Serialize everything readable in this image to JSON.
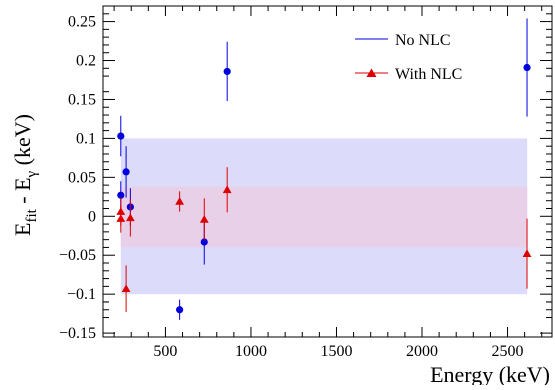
{
  "chart_data": {
    "type": "scatter",
    "title": "",
    "xlabel": "Energy (keV)",
    "ylabel_main": "E",
    "ylabel_sub1": "fit",
    "ylabel_mid": " - E",
    "ylabel_sub2": "γ",
    "ylabel_tail": " (keV)",
    "xlim": [
      135,
      2760
    ],
    "ylim": [
      -0.155,
      0.27
    ],
    "x_ticks": [
      500,
      1000,
      1500,
      2000,
      2500
    ],
    "x_tick_labels": [
      "500",
      "1000",
      "1500",
      "2000",
      "2500"
    ],
    "y_ticks": [
      -0.15,
      -0.1,
      -0.05,
      0,
      0.05,
      0.1,
      0.15,
      0.2,
      0.25
    ],
    "y_tick_labels": [
      "−0.15",
      "−0.1",
      "−0.05",
      "0",
      "0.05",
      "0.1",
      "0.15",
      "0.2",
      "0.25"
    ],
    "bands": [
      {
        "x": [
          239,
          2615
        ],
        "y": [
          -0.1,
          0.1
        ],
        "color": "#dcdcfa"
      },
      {
        "x": [
          239,
          2615
        ],
        "y": [
          -0.04,
          0.038
        ],
        "color": "#e8d0e8"
      }
    ],
    "legend_position": "top-right",
    "series": [
      {
        "name": "No NLC",
        "color": "#0000dd",
        "marker": "circle",
        "points": [
          {
            "x": 239,
            "y": 0.103,
            "err": 0.026
          },
          {
            "x": 239,
            "y": 0.027,
            "err": 0.018
          },
          {
            "x": 270,
            "y": 0.057,
            "err": 0.033
          },
          {
            "x": 295,
            "y": 0.012,
            "err": 0.024
          },
          {
            "x": 583,
            "y": -0.12,
            "err": 0.013
          },
          {
            "x": 727,
            "y": -0.033,
            "err": 0.029
          },
          {
            "x": 861,
            "y": 0.186,
            "err": 0.038
          },
          {
            "x": 2614,
            "y": 0.191,
            "err": 0.063
          }
        ]
      },
      {
        "name": "With NLC",
        "color": "#dd0000",
        "marker": "triangle",
        "points": [
          {
            "x": 239,
            "y": 0.006,
            "err": 0.018
          },
          {
            "x": 239,
            "y": -0.003,
            "err": 0.018
          },
          {
            "x": 270,
            "y": -0.093,
            "err": 0.03
          },
          {
            "x": 295,
            "y": -0.002,
            "err": 0.024
          },
          {
            "x": 583,
            "y": 0.019,
            "err": 0.013
          },
          {
            "x": 727,
            "y": -0.004,
            "err": 0.027
          },
          {
            "x": 861,
            "y": 0.034,
            "err": 0.029
          },
          {
            "x": 2614,
            "y": -0.048,
            "err": 0.045
          }
        ]
      }
    ]
  }
}
